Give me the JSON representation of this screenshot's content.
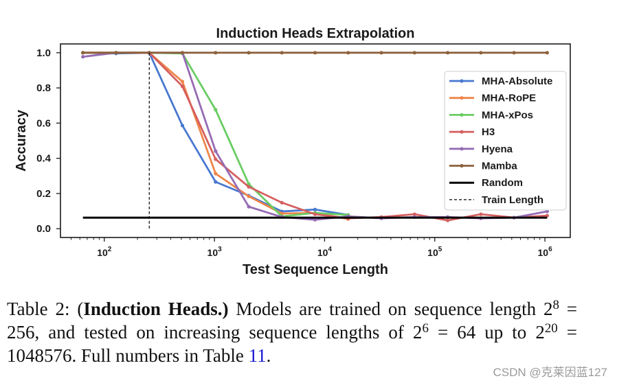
{
  "chart_data": {
    "type": "line",
    "title": "Induction Heads Extrapolation",
    "xlabel": "Test Sequence Length",
    "ylabel": "Accuracy",
    "xscale": "log",
    "xlim": [
      40,
      1700000
    ],
    "ylim": [
      -0.05,
      1.05
    ],
    "x": [
      64,
      128,
      256,
      512,
      1024,
      2048,
      4096,
      8192,
      16384,
      32768,
      65536,
      131072,
      262144,
      524288,
      1048576
    ],
    "xticks": [
      100,
      1000,
      10000,
      100000,
      1000000
    ],
    "xtick_labels": [
      {
        "base": "10",
        "exp": "2"
      },
      {
        "base": "10",
        "exp": "3"
      },
      {
        "base": "10",
        "exp": "4"
      },
      {
        "base": "10",
        "exp": "5"
      },
      {
        "base": "10",
        "exp": "6"
      }
    ],
    "yticks": [
      0.0,
      0.2,
      0.4,
      0.6,
      0.8,
      1.0
    ],
    "ytick_labels": [
      "0.0",
      "0.2",
      "0.4",
      "0.6",
      "0.8",
      "1.0"
    ],
    "series": [
      {
        "name": "MHA-Absolute",
        "color": "#4878d0",
        "values": [
          1.0,
          0.996,
          1.0,
          0.586,
          0.266,
          0.188,
          0.098,
          0.109,
          0.078,
          null,
          null,
          null,
          null,
          null,
          null
        ]
      },
      {
        "name": "MHA-RoPE",
        "color": "#ee854a",
        "values": [
          1.0,
          1.0,
          1.0,
          0.836,
          0.313,
          0.184,
          0.086,
          0.09,
          0.055,
          null,
          null,
          null,
          null,
          null,
          null
        ]
      },
      {
        "name": "MHA-xPos",
        "color": "#6acc64",
        "values": [
          1.0,
          1.0,
          1.0,
          0.996,
          0.676,
          0.254,
          0.07,
          0.09,
          0.078,
          null,
          null,
          null,
          null,
          null,
          null
        ]
      },
      {
        "name": "H3",
        "color": "#d65f5f",
        "values": [
          1.0,
          1.0,
          1.0,
          0.809,
          0.395,
          0.238,
          0.148,
          0.082,
          0.059,
          0.066,
          0.082,
          0.047,
          0.082,
          0.063,
          0.074
        ]
      },
      {
        "name": "Hyena",
        "color": "#956cb4",
        "values": [
          0.977,
          1.0,
          1.0,
          1.0,
          0.441,
          0.125,
          0.066,
          0.051,
          0.07,
          0.059,
          0.066,
          0.066,
          0.059,
          0.063,
          0.098
        ]
      },
      {
        "name": "Mamba",
        "color": "#8c613c",
        "values": [
          1.0,
          1.0,
          1.0,
          1.0,
          1.0,
          1.0,
          1.0,
          1.0,
          1.0,
          1.0,
          1.0,
          1.0,
          1.0,
          1.0,
          1.0
        ]
      }
    ],
    "reference_lines": [
      {
        "name": "Random",
        "orientation": "horizontal",
        "value": 0.0625,
        "span": [
          64,
          1048576
        ],
        "color": "#000000",
        "style": "solid"
      },
      {
        "name": "Train Length",
        "orientation": "vertical",
        "value": 256,
        "span": [
          0.0,
          1.0
        ],
        "color": "#000000",
        "style": "dashed"
      }
    ],
    "legend": {
      "position": "center-right"
    }
  },
  "caption": {
    "label": "Table 2:",
    "term_open": "(",
    "term": "Induction Heads",
    "term_close": ".)",
    "l1_text": "Models are trained on sequence length 2",
    "l1_exp": "8",
    "l1_eq": "=",
    "l2_text_a": "256, and tested on increasing sequence lengths of 2",
    "l2_exp_a": "6",
    "l2_text_b": "= 64 up to 2",
    "l2_exp_b": "20",
    "l2_eq": "=",
    "l3_text": "1048576. Full numbers in Table",
    "l3_ref": "11",
    "l3_end": "."
  },
  "watermark": "CSDN @克莱因蓝127"
}
